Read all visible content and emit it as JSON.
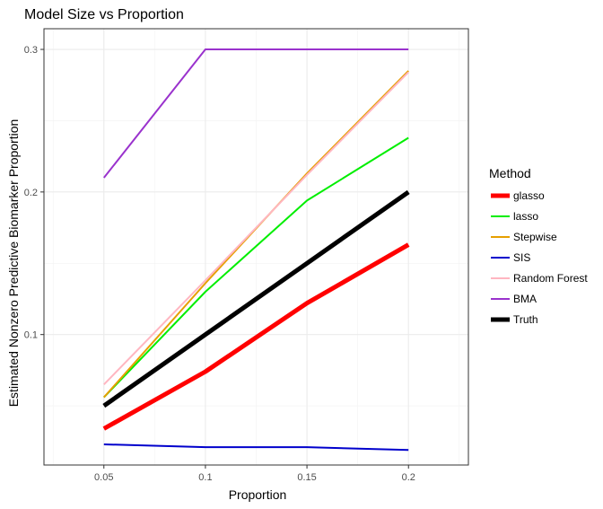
{
  "chart_data": {
    "type": "line",
    "title": "Model Size vs Proportion",
    "xlabel": "Proportion",
    "ylabel": "Estimated Nonzero Predictive Biomarker Proportion",
    "x": [
      0.05,
      0.1,
      0.15,
      0.2
    ],
    "x_tick_labels": [
      "0.05",
      "0.1",
      "0.15",
      "0.2"
    ],
    "y_ticks": [
      0.1,
      0.2,
      0.3
    ],
    "y_tick_labels": [
      "0.1",
      "0.2",
      "0.3"
    ],
    "xlim": [
      0.0205,
      0.2295
    ],
    "ylim": [
      0.0085,
      0.3145
    ],
    "grid": true,
    "legend": {
      "title": "Method",
      "position": "right"
    },
    "series": [
      {
        "name": "glasso",
        "color": "#ff0000",
        "width": "thick",
        "values": [
          0.034,
          0.074,
          0.122,
          0.163
        ]
      },
      {
        "name": "lasso",
        "color": "#00ee00",
        "width": "normal",
        "values": [
          0.056,
          0.13,
          0.194,
          0.238
        ]
      },
      {
        "name": "Stepwise",
        "color": "#e69f00",
        "width": "normal",
        "values": [
          0.056,
          0.136,
          0.213,
          0.285
        ]
      },
      {
        "name": "SIS",
        "color": "#0000cc",
        "width": "normal",
        "values": [
          0.023,
          0.021,
          0.021,
          0.019
        ]
      },
      {
        "name": "Random Forest",
        "color": "#ffb6c1",
        "width": "normal",
        "values": [
          0.065,
          0.138,
          0.212,
          0.284
        ]
      },
      {
        "name": "BMA",
        "color": "#9a32cd",
        "width": "normal",
        "values": [
          0.21,
          0.3,
          0.3,
          0.3
        ]
      },
      {
        "name": "Truth",
        "color": "#000000",
        "width": "thick",
        "values": [
          0.05,
          0.1,
          0.15,
          0.2
        ]
      }
    ]
  }
}
